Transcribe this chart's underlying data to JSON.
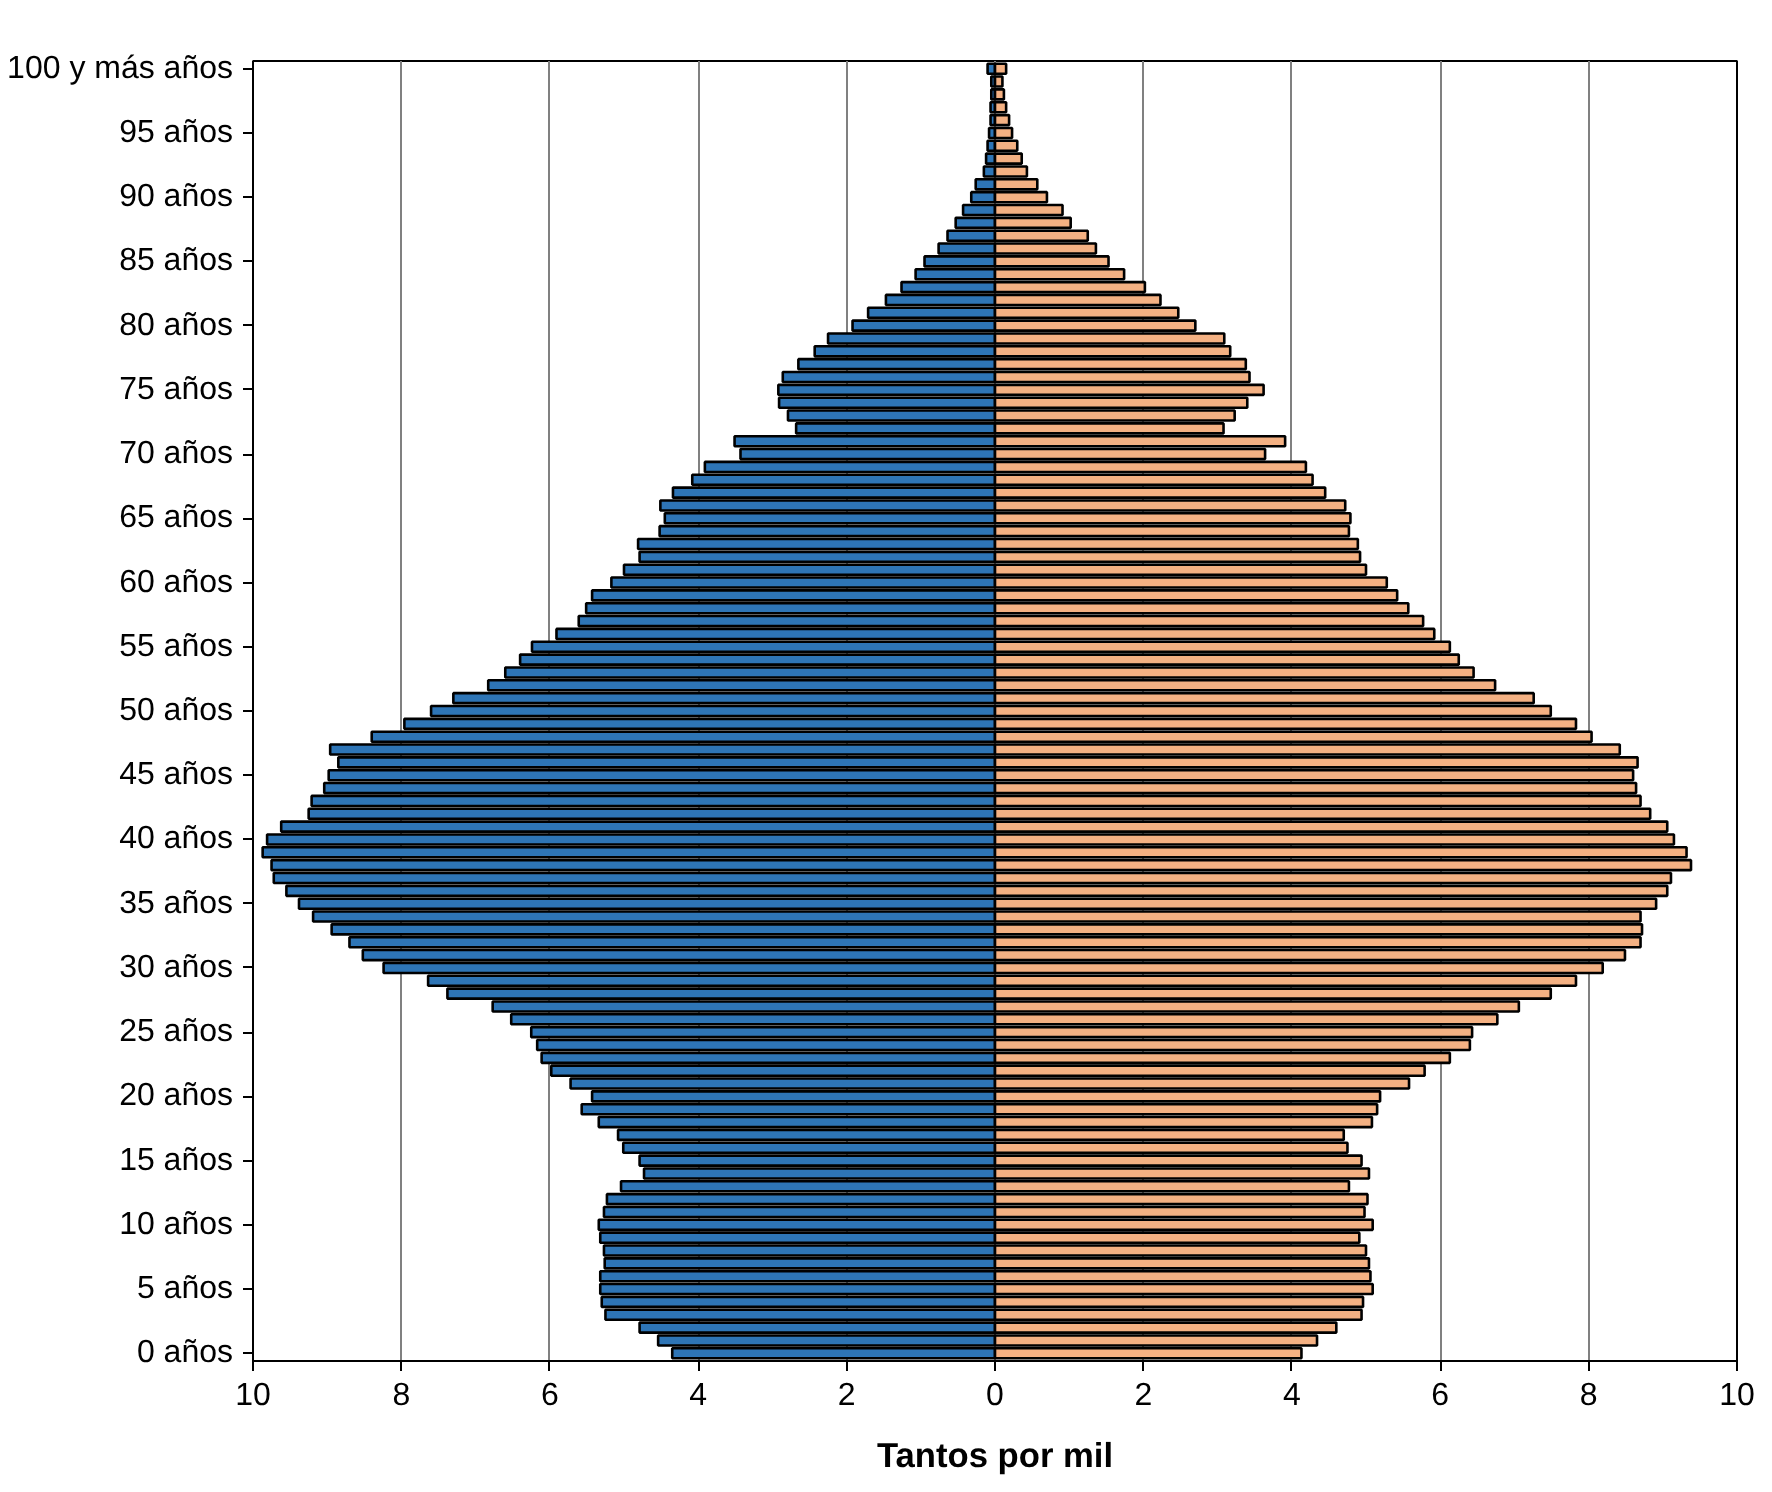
{
  "chart_data": {
    "type": "bar",
    "orientation": "horizontal",
    "xlabel": "Tantos por mil",
    "categories": [
      "100 y más años",
      null,
      null,
      null,
      null,
      "95 años",
      null,
      null,
      null,
      null,
      "90 años",
      null,
      null,
      null,
      null,
      "85 años",
      null,
      null,
      null,
      null,
      "80 años",
      null,
      null,
      null,
      null,
      "75 años",
      null,
      null,
      null,
      null,
      "70 años",
      null,
      null,
      null,
      null,
      "65 años",
      null,
      null,
      null,
      null,
      "60 años",
      null,
      null,
      null,
      null,
      "55 años",
      null,
      null,
      null,
      null,
      "50 años",
      null,
      null,
      null,
      null,
      "45 años",
      null,
      null,
      null,
      null,
      "40 años",
      null,
      null,
      null,
      null,
      "35 años",
      null,
      null,
      null,
      null,
      "30 años",
      null,
      null,
      null,
      null,
      "25 años",
      null,
      null,
      null,
      null,
      "20 años",
      null,
      null,
      null,
      null,
      "15 años",
      null,
      null,
      null,
      null,
      "10 años",
      null,
      null,
      null,
      null,
      "5 años",
      null,
      null,
      null,
      null,
      "0 años"
    ],
    "series": [
      {
        "color": "#2e75b6",
        "values": [
          -0.1,
          -0.05,
          -0.05,
          -0.06,
          -0.06,
          -0.08,
          -0.1,
          -0.12,
          -0.15,
          -0.26,
          -0.32,
          -0.43,
          -0.53,
          -0.64,
          -0.76,
          -0.95,
          -1.07,
          -1.26,
          -1.47,
          -1.71,
          -1.92,
          -2.25,
          -2.43,
          -2.65,
          -2.86,
          -2.92,
          -2.91,
          -2.79,
          -2.68,
          -3.51,
          -3.43,
          -3.91,
          -4.08,
          -4.34,
          -4.51,
          -4.45,
          -4.52,
          -4.81,
          -4.79,
          -5.0,
          -5.17,
          -5.43,
          -5.51,
          -5.61,
          -5.91,
          -6.24,
          -6.4,
          -6.6,
          -6.83,
          -7.3,
          -7.6,
          -7.96,
          -8.4,
          -8.96,
          -8.85,
          -8.98,
          -9.04,
          -9.21,
          -9.25,
          -9.62,
          -9.81,
          -9.87,
          -9.75,
          -9.72,
          -9.55,
          -9.38,
          -9.19,
          -8.94,
          -8.7,
          -8.52,
          -8.24,
          -7.64,
          -7.38,
          -6.77,
          -6.52,
          -6.25,
          -6.17,
          -6.11,
          -5.98,
          -5.72,
          -5.43,
          -5.57,
          -5.34,
          -5.08,
          -5.01,
          -4.79,
          -4.73,
          -5.04,
          -5.23,
          -5.27,
          -5.34,
          -5.32,
          -5.27,
          -5.26,
          -5.32,
          -5.32,
          -5.3,
          -5.25,
          -4.79,
          -4.54,
          -4.35
        ]
      },
      {
        "color": "#f4b183",
        "values": [
          0.15,
          0.1,
          0.12,
          0.15,
          0.19,
          0.23,
          0.3,
          0.36,
          0.43,
          0.57,
          0.7,
          0.91,
          1.02,
          1.25,
          1.36,
          1.53,
          1.74,
          2.02,
          2.23,
          2.47,
          2.7,
          3.09,
          3.17,
          3.38,
          3.43,
          3.62,
          3.4,
          3.23,
          3.08,
          3.91,
          3.64,
          4.19,
          4.28,
          4.45,
          4.72,
          4.79,
          4.77,
          4.89,
          4.92,
          5.0,
          5.28,
          5.42,
          5.57,
          5.77,
          5.92,
          6.13,
          6.25,
          6.45,
          6.74,
          7.26,
          7.49,
          7.83,
          8.04,
          8.42,
          8.66,
          8.6,
          8.64,
          8.7,
          8.83,
          9.06,
          9.15,
          9.32,
          9.38,
          9.11,
          9.06,
          8.91,
          8.7,
          8.72,
          8.7,
          8.49,
          8.19,
          7.83,
          7.49,
          7.06,
          6.77,
          6.43,
          6.4,
          6.13,
          5.79,
          5.58,
          5.19,
          5.15,
          5.08,
          4.7,
          4.75,
          4.94,
          5.04,
          4.77,
          5.02,
          4.98,
          5.09,
          4.91,
          5.0,
          5.04,
          5.06,
          5.09,
          4.96,
          4.94,
          4.6,
          4.34,
          4.13
        ]
      }
    ],
    "xlim": [
      -10,
      10
    ],
    "xticks": [
      {
        "value": -10,
        "label": "10"
      },
      {
        "value": -8,
        "label": "8"
      },
      {
        "value": -6,
        "label": "6"
      },
      {
        "value": -4,
        "label": "4"
      },
      {
        "value": -2,
        "label": "2"
      },
      0,
      2,
      4,
      6,
      8,
      10
    ],
    "grid": "x",
    "stacked": true
  }
}
